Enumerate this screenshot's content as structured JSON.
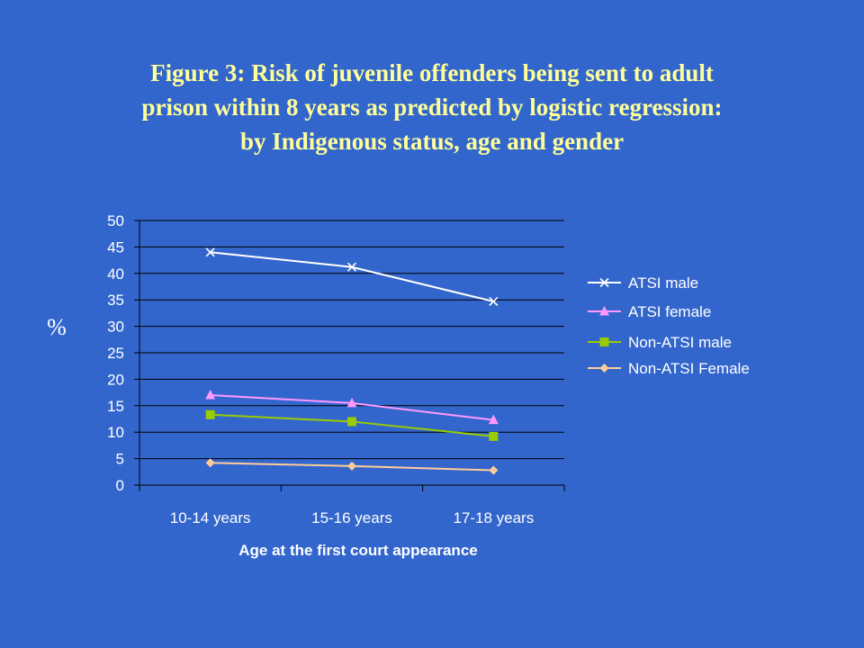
{
  "title_lines": [
    "Figure 3: Risk of juvenile offenders being sent to adult",
    "prison within 8 years as predicted by logistic regression:",
    "by Indigenous status, age and gender"
  ],
  "chart_data": {
    "type": "line",
    "title": "Figure 3: Risk of juvenile offenders being sent to adult prison within 8 years as predicted by logistic regression: by Indigenous status, age and gender",
    "categories": [
      "10-14 years",
      "15-16 years",
      "17-18 years"
    ],
    "xlabel": "Age at the first court appearance",
    "ylabel": "%",
    "ylim": [
      0,
      50
    ],
    "yticks": [
      0,
      5,
      10,
      15,
      20,
      25,
      30,
      35,
      40,
      45,
      50
    ],
    "grid": true,
    "legend_position": "right",
    "series": [
      {
        "name": "ATSI male",
        "values": [
          44.0,
          41.2,
          34.7
        ],
        "color": "#ffffff",
        "marker": "x"
      },
      {
        "name": "ATSI female",
        "values": [
          17.0,
          15.5,
          12.3
        ],
        "color": "#ff99ff",
        "marker": "triangle"
      },
      {
        "name": "Non-ATSI male",
        "values": [
          13.3,
          12.0,
          9.2
        ],
        "color": "#99cc00",
        "marker": "square"
      },
      {
        "name": "Non-ATSI Female",
        "values": [
          4.2,
          3.6,
          2.8
        ],
        "color": "#ffcc99",
        "marker": "diamond"
      }
    ]
  },
  "colors": {
    "background": "#3366cc",
    "title": "#ffff99",
    "axes": "#000000",
    "text": "#ffffff"
  }
}
